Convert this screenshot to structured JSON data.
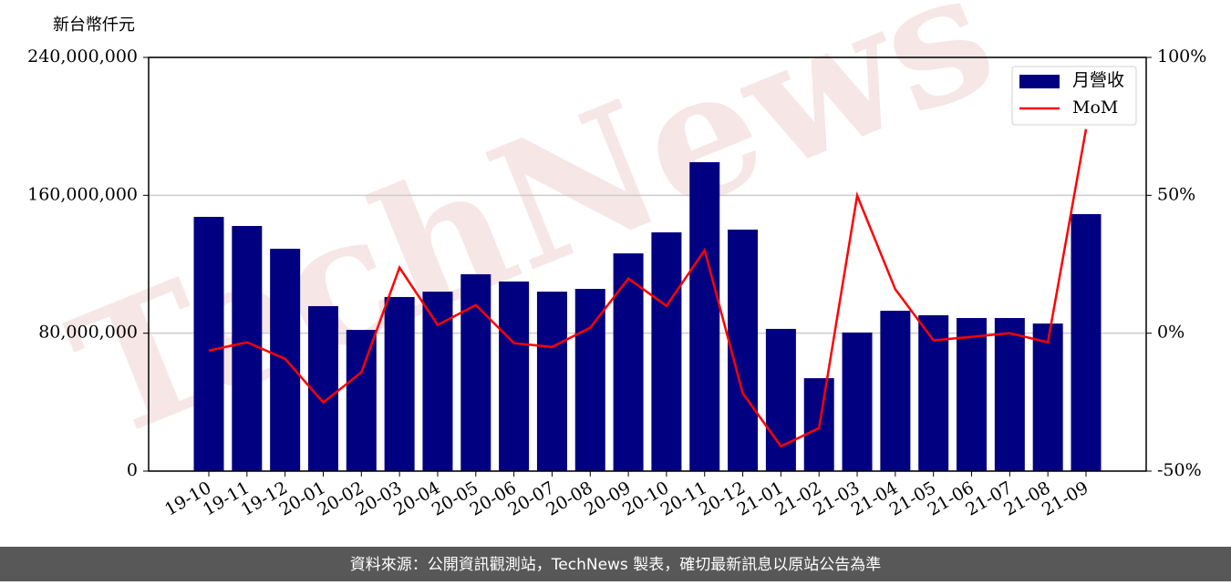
{
  "chart_data": {
    "type": "bar",
    "unit_label": "新台幣仟元",
    "watermark": "TechNews",
    "source": "資料來源：公開資訊觀測站，TechNews 製表，確切最新訊息以原站公告為準",
    "categories": [
      "19-10",
      "19-11",
      "19-12",
      "20-01",
      "20-02",
      "20-03",
      "20-04",
      "20-05",
      "20-06",
      "20-07",
      "20-08",
      "20-09",
      "20-10",
      "20-11",
      "20-12",
      "21-01",
      "21-02",
      "21-03",
      "21-04",
      "21-05",
      "21-06",
      "21-07",
      "21-08",
      "21-09"
    ],
    "series": [
      {
        "name": "月營收",
        "type": "bar",
        "color": "#000080",
        "values": [
          147500000,
          142200000,
          129000000,
          95700000,
          81900000,
          101000000,
          104100000,
          114200000,
          110000000,
          104100000,
          105700000,
          126300000,
          138500000,
          179200000,
          140100000,
          82500000,
          53900000,
          80400000,
          93000000,
          90400000,
          88800000,
          88800000,
          85600000,
          149100000
        ]
      },
      {
        "name": "MoM",
        "type": "line",
        "axis": "y2",
        "color": "#ff0000",
        "values": [
          -6.3,
          -3.3,
          -9.3,
          -25.1,
          -14.2,
          23.8,
          3.0,
          10.2,
          -3.6,
          -5.0,
          2.0,
          19.8,
          9.9,
          30.1,
          -21.8,
          -41.0,
          -34.4,
          49.9,
          15.9,
          -2.6,
          -1.3,
          0,
          -3.3,
          74
        ]
      }
    ],
    "ylim": [
      0,
      240000000
    ],
    "yticks": [
      0,
      {
        "value": 80000000,
        "label": "80,000,000"
      },
      {
        "value": 160000000,
        "label": "160,000,000"
      },
      {
        "value": 240000000,
        "label": "240,000,000"
      }
    ],
    "y2lim": [
      -50,
      100
    ],
    "y2ticks": [
      {
        "value": -50,
        "label": "-50%"
      },
      {
        "value": 0,
        "label": "0%"
      },
      {
        "value": 50,
        "label": "50%"
      },
      {
        "value": 100,
        "label": "100%"
      }
    ],
    "grid": true,
    "legend": "upper right"
  }
}
